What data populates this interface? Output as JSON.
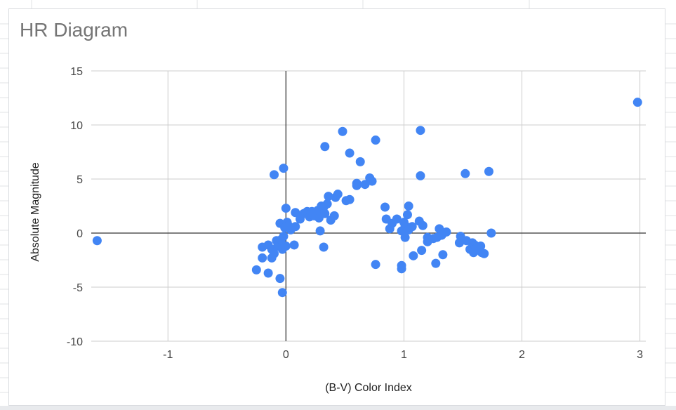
{
  "chart_data": {
    "type": "scatter",
    "title": "HR Diagram",
    "xlabel": "(B-V) Color Index",
    "ylabel": "Absolute Magnitude",
    "xlim": [
      -1.65,
      3.05
    ],
    "ylim": [
      -10,
      15
    ],
    "xticks": [
      -1,
      0,
      1,
      2,
      3
    ],
    "yticks": [
      -10,
      -5,
      0,
      5,
      10,
      15
    ],
    "grid": true,
    "marker_color": "#4285f4",
    "points": [
      [
        -1.6,
        -0.7
      ],
      [
        -0.1,
        5.4
      ],
      [
        -0.02,
        6.0
      ],
      [
        0.33,
        8.0
      ],
      [
        0.48,
        9.4
      ],
      [
        0.54,
        7.4
      ],
      [
        0.63,
        6.6
      ],
      [
        0.76,
        8.6
      ],
      [
        1.14,
        9.5
      ],
      [
        1.14,
        5.3
      ],
      [
        1.52,
        5.5
      ],
      [
        1.72,
        5.7
      ],
      [
        2.98,
        12.1
      ],
      [
        0.0,
        2.3
      ],
      [
        0.08,
        1.9
      ],
      [
        0.12,
        1.3
      ],
      [
        0.15,
        1.8
      ],
      [
        0.18,
        2.0
      ],
      [
        0.2,
        1.5
      ],
      [
        0.22,
        2.0
      ],
      [
        0.24,
        1.6
      ],
      [
        0.26,
        1.8
      ],
      [
        0.27,
        2.1
      ],
      [
        0.28,
        1.4
      ],
      [
        0.3,
        2.5
      ],
      [
        0.32,
        2.4
      ],
      [
        0.33,
        1.8
      ],
      [
        0.35,
        2.7
      ],
      [
        0.36,
        3.4
      ],
      [
        0.38,
        1.2
      ],
      [
        0.41,
        1.6
      ],
      [
        0.42,
        3.3
      ],
      [
        0.44,
        3.6
      ],
      [
        0.51,
        3.0
      ],
      [
        0.54,
        3.1
      ],
      [
        0.6,
        4.6
      ],
      [
        0.6,
        4.4
      ],
      [
        0.67,
        4.5
      ],
      [
        0.71,
        5.1
      ],
      [
        0.73,
        4.8
      ],
      [
        0.84,
        2.4
      ],
      [
        0.85,
        1.3
      ],
      [
        0.88,
        0.4
      ],
      [
        0.9,
        0.9
      ],
      [
        0.94,
        1.3
      ],
      [
        0.98,
        0.2
      ],
      [
        1.0,
        1.0
      ],
      [
        1.01,
        0.7
      ],
      [
        1.01,
        -0.4
      ],
      [
        1.03,
        1.7
      ],
      [
        1.04,
        0.3
      ],
      [
        1.04,
        2.5
      ],
      [
        1.07,
        0.6
      ],
      [
        1.13,
        1.1
      ],
      [
        1.16,
        0.7
      ],
      [
        1.2,
        -0.4
      ],
      [
        1.2,
        -0.8
      ],
      [
        1.25,
        -0.5
      ],
      [
        1.28,
        -0.4
      ],
      [
        1.3,
        0.4
      ],
      [
        1.32,
        -0.2
      ],
      [
        1.36,
        0.1
      ],
      [
        1.47,
        -0.9
      ],
      [
        1.48,
        -0.3
      ],
      [
        1.53,
        -0.7
      ],
      [
        1.56,
        -1.5
      ],
      [
        1.58,
        -0.9
      ],
      [
        1.59,
        -1.8
      ],
      [
        1.6,
        -1.1
      ],
      [
        1.62,
        -1.3
      ],
      [
        1.64,
        -1.6
      ],
      [
        1.65,
        -1.2
      ],
      [
        1.66,
        -1.8
      ],
      [
        1.68,
        -1.9
      ],
      [
        1.74,
        0.0
      ],
      [
        -0.25,
        -3.4
      ],
      [
        -0.2,
        -2.3
      ],
      [
        -0.2,
        -1.3
      ],
      [
        -0.15,
        -3.7
      ],
      [
        -0.15,
        -1.1
      ],
      [
        -0.12,
        -1.5
      ],
      [
        -0.12,
        -2.3
      ],
      [
        -0.1,
        -1.9
      ],
      [
        -0.08,
        -0.7
      ],
      [
        -0.07,
        -1.2
      ],
      [
        -0.05,
        -4.2
      ],
      [
        -0.05,
        0.9
      ],
      [
        -0.04,
        -0.6
      ],
      [
        -0.03,
        -5.5
      ],
      [
        -0.03,
        -1.5
      ],
      [
        -0.02,
        -0.3
      ],
      [
        -0.01,
        0.5
      ],
      [
        0.0,
        -1.2
      ],
      [
        0.01,
        1.0
      ],
      [
        0.02,
        0.7
      ],
      [
        0.04,
        0.3
      ],
      [
        0.07,
        -1.1
      ],
      [
        0.08,
        0.6
      ],
      [
        0.29,
        0.2
      ],
      [
        0.32,
        -1.3
      ],
      [
        0.76,
        -2.9
      ],
      [
        0.98,
        -3.0
      ],
      [
        0.98,
        -3.3
      ],
      [
        1.08,
        -2.1
      ],
      [
        1.15,
        -1.6
      ],
      [
        1.27,
        -2.8
      ],
      [
        1.33,
        -2.0
      ]
    ]
  }
}
